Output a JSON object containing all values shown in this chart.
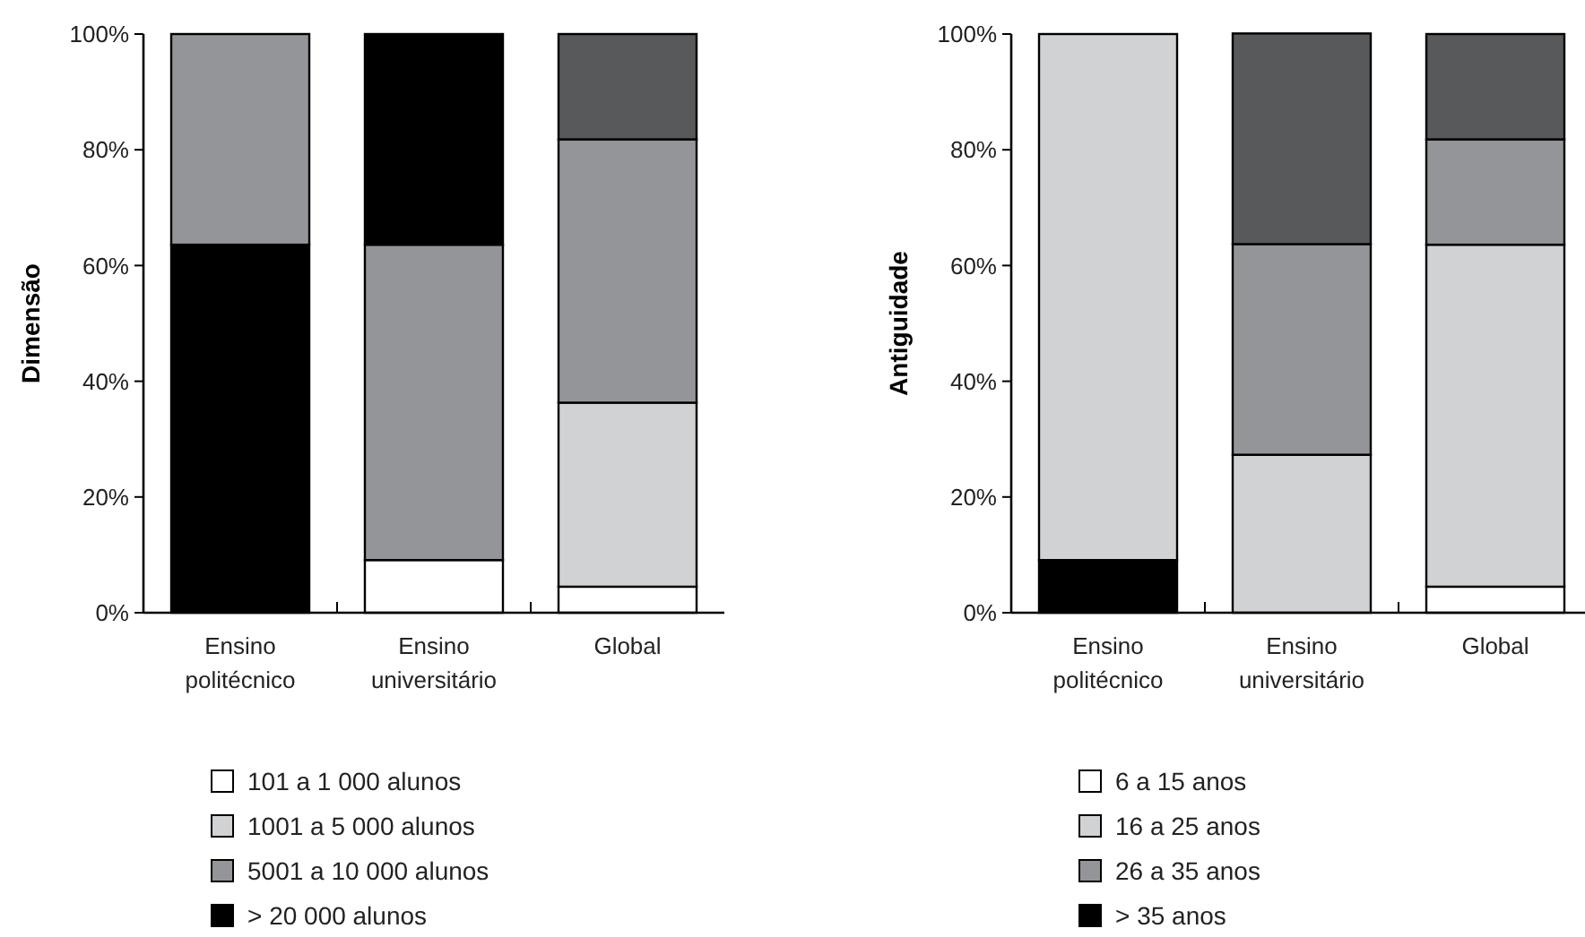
{
  "chart_data": [
    {
      "type": "bar",
      "stacked": true,
      "ylabel": "Dimensão",
      "categories": [
        "Ensino\npolitécnico",
        "Ensino\nuniversitário",
        "Global"
      ],
      "ylim": [
        0,
        100
      ],
      "yticks": [
        {
          "value": 0,
          "label": "0%"
        },
        {
          "value": 20,
          "label": "20%"
        },
        {
          "value": 40,
          "label": "40%"
        },
        {
          "value": 60,
          "label": "60%"
        },
        {
          "value": 80,
          "label": "80%"
        },
        {
          "value": 100,
          "label": "100%"
        }
      ],
      "legend": "bottom",
      "series": [
        {
          "color": "#000000",
          "values": [
            63.6,
            null,
            null
          ]
        },
        {
          "name": "101 a 1 000 alunos",
          "color": "#ffffff",
          "values": [
            null,
            9.1,
            4.5
          ]
        },
        {
          "name": "1001 a 5 000 alunos",
          "color": "#d1d2d4",
          "values": [
            null,
            null,
            31.8
          ]
        },
        {
          "name": "5001 a 10 000 alunos",
          "color": "#939598",
          "values": [
            36.4,
            54.5,
            45.5
          ]
        },
        {
          "color": "#58595b",
          "values": [
            null,
            null,
            18.2
          ]
        },
        {
          "name": "> 20 000 alunos",
          "color": "#000000",
          "values": [
            null,
            36.4,
            null
          ]
        }
      ]
    },
    {
      "type": "bar",
      "stacked": true,
      "ylabel": "Antiguidade",
      "categories": [
        "Ensino\npolitécnico",
        "Ensino\nuniversitário",
        "Global"
      ],
      "ylim": [
        0,
        100
      ],
      "yticks": [
        {
          "value": 0,
          "label": "0%"
        },
        {
          "value": 20,
          "label": "20%"
        },
        {
          "value": 40,
          "label": "40%"
        },
        {
          "value": 60,
          "label": "60%"
        },
        {
          "value": 80,
          "label": "80%"
        },
        {
          "value": 100,
          "label": "100%"
        }
      ],
      "legend": "bottom",
      "series": [
        {
          "color": "#000000",
          "values": [
            9.1,
            null,
            null
          ]
        },
        {
          "name": "6 a 15 anos",
          "color": "#ffffff",
          "values": [
            null,
            null,
            4.5
          ]
        },
        {
          "name": "16 a 25 anos",
          "color": "#d1d2d4",
          "values": [
            90.9,
            27.3,
            59.1
          ]
        },
        {
          "name": "26 a 35 anos",
          "color": "#939598",
          "values": [
            null,
            36.4,
            18.2
          ]
        },
        {
          "color": "#58595b",
          "values": [
            null,
            36.4,
            18.2
          ]
        },
        {
          "name": "> 35 anos",
          "color": "#000000",
          "values": [
            null,
            null,
            null
          ]
        }
      ]
    }
  ]
}
